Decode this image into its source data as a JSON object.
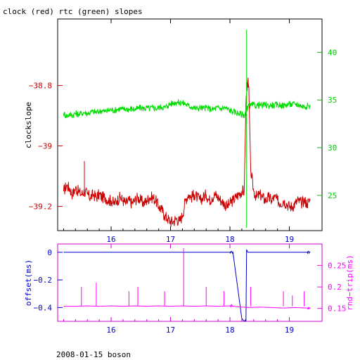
{
  "header": {
    "title": "clock (red) rtc (green) slopes"
  },
  "footer": {
    "caption": "2008-01-15 boson"
  },
  "chart_data": [
    {
      "type": "line",
      "title": "clock (red) rtc (green) slopes",
      "xlim": [
        15.1,
        19.55
      ],
      "x_ticks": [
        16,
        17,
        18,
        19
      ],
      "x_tick_labels": [
        "16",
        "17",
        "18",
        "19"
      ],
      "left_axis": {
        "label": "clockslope",
        "color": "#cc0000",
        "lim": [
          -39.28,
          -38.58
        ],
        "ticks": [
          -38.8,
          -39,
          -39.2
        ],
        "tick_labels": [
          "−38.8",
          "−39",
          "−39.2"
        ]
      },
      "right_axis": {
        "label": "",
        "color": "#00cc00",
        "lim": [
          21.3,
          43.5
        ],
        "ticks": [
          25,
          30,
          35,
          40
        ],
        "tick_labels": [
          "25",
          "30",
          "35",
          "40"
        ]
      },
      "series": [
        {
          "name": "clock",
          "color": "#cc0000",
          "axis": "left",
          "x": [
            15.2,
            15.25,
            15.3,
            15.35,
            15.4,
            15.45,
            15.5,
            15.55,
            15.6,
            15.65,
            15.7,
            15.75,
            15.8,
            15.85,
            15.9,
            15.95,
            16.0,
            16.05,
            16.1,
            16.15,
            16.2,
            16.25,
            16.3,
            16.35,
            16.4,
            16.45,
            16.5,
            16.55,
            16.6,
            16.65,
            16.7,
            16.75,
            16.8,
            16.85,
            16.9,
            16.95,
            17.0,
            17.05,
            17.1,
            17.15,
            17.2,
            17.25,
            17.3,
            17.35,
            17.4,
            17.45,
            17.5,
            17.55,
            17.6,
            17.65,
            17.7,
            17.75,
            17.8,
            17.85,
            17.9,
            17.95,
            18.0,
            18.05,
            18.1,
            18.15,
            18.2,
            18.24,
            18.27,
            18.3,
            18.32,
            18.35,
            18.4,
            18.45,
            18.5,
            18.55,
            18.6,
            18.65,
            18.7,
            18.75,
            18.8,
            18.85,
            18.9,
            18.95,
            19.0,
            19.05,
            19.1,
            19.15,
            19.2,
            19.25,
            19.3,
            19.35
          ],
          "y": [
            -39.15,
            -39.13,
            -39.14,
            -39.16,
            -39.14,
            -39.15,
            -39.16,
            -39.15,
            -39.16,
            -39.17,
            -39.16,
            -39.17,
            -39.16,
            -39.17,
            -39.17,
            -39.18,
            -39.18,
            -39.19,
            -39.18,
            -39.17,
            -39.18,
            -39.19,
            -39.18,
            -39.19,
            -39.18,
            -39.17,
            -39.18,
            -39.19,
            -39.18,
            -39.17,
            -39.17,
            -39.18,
            -39.2,
            -39.21,
            -39.23,
            -39.24,
            -39.25,
            -39.25,
            -39.24,
            -39.25,
            -39.23,
            -39.18,
            -39.16,
            -39.17,
            -39.16,
            -39.17,
            -39.18,
            -39.17,
            -39.16,
            -39.18,
            -39.17,
            -39.16,
            -39.17,
            -39.18,
            -39.19,
            -39.2,
            -39.19,
            -39.18,
            -39.17,
            -39.16,
            -39.15,
            -39.15,
            -38.86,
            -38.78,
            -38.83,
            -39.08,
            -39.15,
            -39.17,
            -39.16,
            -39.17,
            -39.18,
            -39.17,
            -39.18,
            -39.17,
            -39.18,
            -39.19,
            -39.18,
            -39.19,
            -39.2,
            -39.2,
            -39.19,
            -39.18,
            -39.19,
            -39.18,
            -39.19,
            -39.18
          ]
        },
        {
          "name": "rtc",
          "color": "#00dd00",
          "axis": "right",
          "x": [
            15.2,
            15.25,
            15.3,
            15.35,
            15.4,
            15.45,
            15.5,
            15.55,
            15.6,
            15.65,
            15.7,
            15.75,
            15.8,
            15.85,
            15.9,
            15.95,
            16.0,
            16.05,
            16.1,
            16.15,
            16.2,
            16.25,
            16.3,
            16.35,
            16.4,
            16.45,
            16.5,
            16.55,
            16.6,
            16.65,
            16.7,
            16.75,
            16.8,
            16.85,
            16.9,
            16.95,
            17.0,
            17.05,
            17.1,
            17.15,
            17.2,
            17.25,
            17.3,
            17.35,
            17.4,
            17.45,
            17.5,
            17.55,
            17.6,
            17.65,
            17.7,
            17.75,
            17.8,
            17.85,
            17.9,
            17.95,
            18.0,
            18.05,
            18.1,
            18.15,
            18.2,
            18.25,
            18.27,
            18.3,
            18.35,
            18.4,
            18.45,
            18.5,
            18.55,
            18.6,
            18.65,
            18.7,
            18.75,
            18.8,
            18.85,
            18.9,
            18.95,
            19.0,
            19.05,
            19.1,
            19.15,
            19.2,
            19.25,
            19.3,
            19.35
          ],
          "y": [
            33.6,
            33.3,
            33.5,
            33.4,
            33.6,
            33.5,
            33.6,
            33.7,
            33.6,
            33.7,
            33.8,
            33.7,
            33.8,
            33.9,
            33.8,
            33.9,
            34.0,
            33.9,
            34.0,
            34.1,
            34.0,
            34.1,
            34.0,
            34.1,
            34.0,
            34.1,
            34.2,
            34.1,
            34.2,
            34.1,
            34.2,
            34.1,
            34.2,
            34.3,
            34.2,
            34.4,
            34.6,
            34.7,
            34.8,
            34.7,
            34.7,
            34.6,
            34.4,
            34.3,
            34.2,
            34.1,
            34.2,
            34.1,
            34.2,
            34.1,
            34.0,
            34.1,
            34.2,
            34.1,
            34.2,
            34.1,
            33.9,
            33.8,
            33.7,
            33.6,
            33.5,
            33.4,
            33.9,
            34.3,
            34.4,
            34.5,
            34.4,
            34.5,
            34.4,
            34.5,
            34.4,
            34.5,
            34.4,
            34.5,
            34.5,
            34.4,
            34.5,
            34.6,
            34.5,
            34.6,
            34.5,
            34.4,
            34.3,
            34.4,
            34.3
          ]
        }
      ],
      "annotations": [
        {
          "series": "rtc",
          "type": "vertical-spike",
          "x": 18.28,
          "y_from": 21.6,
          "y_to": 42.4
        },
        {
          "series": "clock",
          "type": "spike",
          "x": 15.55,
          "y": -39.05
        }
      ]
    },
    {
      "type": "line",
      "xlim": [
        15.1,
        19.55
      ],
      "x_ticks": [
        16,
        17,
        18,
        19
      ],
      "x_tick_labels": [
        "16",
        "17",
        "18",
        "19"
      ],
      "left_axis": {
        "label": "offset(ms)",
        "color": "#0000cc",
        "lim": [
          -0.5,
          0.06
        ],
        "ticks": [
          0,
          -0.2,
          -0.4
        ],
        "tick_labels": [
          "0",
          "−0.2",
          "−0.4"
        ]
      },
      "right_axis": {
        "label": "rnd−trip(ms)",
        "color": "#ff00ff",
        "lim": [
          0.12,
          0.3
        ],
        "ticks": [
          0.15,
          0.2,
          0.25
        ],
        "tick_labels": [
          "0.15",
          "0.2",
          "0.25"
        ]
      },
      "series": [
        {
          "name": "offset",
          "color": "#0000cc",
          "axis": "left",
          "x": [
            15.2,
            15.4,
            15.6,
            15.8,
            16.0,
            16.2,
            16.4,
            16.6,
            16.8,
            17.0,
            17.2,
            17.4,
            17.6,
            17.8,
            18.0,
            18.05,
            18.2,
            18.27,
            18.28,
            18.3,
            18.5,
            18.7,
            18.9,
            19.1,
            19.3,
            19.35
          ],
          "y": [
            0.0,
            0.0,
            0.0,
            0.0,
            0.0,
            0.0,
            0.0,
            0.0,
            0.0,
            0.0,
            0.0,
            0.0,
            0.0,
            0.0,
            0.0,
            0.0,
            -0.48,
            -0.5,
            0.02,
            0.0,
            0.0,
            0.0,
            0.0,
            0.0,
            0.0,
            0.0
          ]
        },
        {
          "name": "rnd-trip",
          "color": "#ff00ff",
          "axis": "right",
          "x": [
            15.2,
            15.4,
            15.6,
            15.8,
            16.0,
            16.2,
            16.4,
            16.6,
            16.8,
            17.0,
            17.2,
            17.4,
            17.6,
            17.8,
            18.0,
            18.05,
            18.3,
            18.5,
            18.7,
            18.9,
            19.1,
            19.3,
            19.35
          ],
          "y": [
            0.155,
            0.155,
            0.156,
            0.155,
            0.156,
            0.155,
            0.156,
            0.155,
            0.156,
            0.155,
            0.156,
            0.155,
            0.156,
            0.155,
            0.156,
            0.155,
            0.152,
            0.153,
            0.152,
            0.151,
            0.152,
            0.151,
            0.152
          ]
        }
      ],
      "annotations": [
        {
          "series": "rnd-trip",
          "type": "spikes",
          "x": [
            15.5,
            15.75,
            16.3,
            16.45,
            16.9,
            17.22,
            17.6,
            17.9,
            18.35,
            18.9,
            19.05,
            19.25
          ],
          "y": [
            0.2,
            0.21,
            0.19,
            0.2,
            0.19,
            0.29,
            0.2,
            0.19,
            0.2,
            0.19,
            0.18,
            0.19
          ]
        }
      ]
    }
  ]
}
